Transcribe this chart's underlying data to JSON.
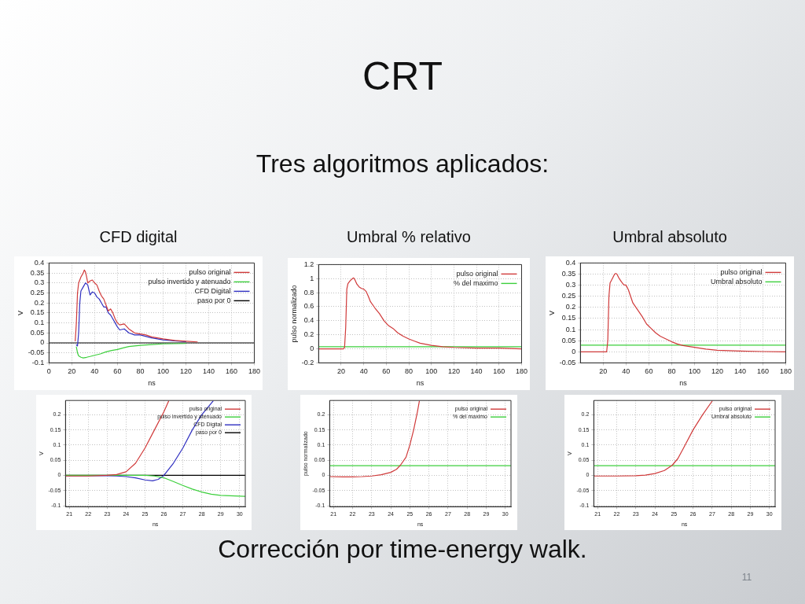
{
  "chart_data": [
    {
      "type": "other",
      "title": "CRT",
      "subtitle": "Tres algoritmos aplicados:",
      "annotations": [
        "Corrección por time-energy walk.",
        "11"
      ]
    },
    {
      "type": "line",
      "title": "CFD digital",
      "xlabel": "ns",
      "ylabel": "V",
      "xlim": [
        0,
        180
      ],
      "xticks": [
        0,
        20,
        40,
        60,
        80,
        100,
        120,
        140,
        160,
        180
      ],
      "ylim": [
        -0.1,
        0.4
      ],
      "yticks": [
        -0.1,
        -0.05,
        0,
        0.05,
        0.1,
        0.15,
        0.2,
        0.25,
        0.3,
        0.35,
        0.4
      ],
      "grid": true,
      "legend": "top right",
      "marker": "none",
      "series": [
        {
          "name": "pulso original",
          "color": "#d03a3a",
          "x": [
            23,
            24,
            25,
            26,
            28,
            30,
            31,
            32,
            33,
            34,
            36,
            38,
            40,
            42,
            44,
            46,
            48,
            50,
            52,
            54,
            56,
            58,
            60,
            62,
            66,
            70,
            75,
            80,
            85,
            90,
            100,
            110,
            120,
            130
          ],
          "values": [
            0.01,
            0.1,
            0.25,
            0.3,
            0.33,
            0.35,
            0.365,
            0.355,
            0.33,
            0.3,
            0.31,
            0.315,
            0.3,
            0.29,
            0.26,
            0.235,
            0.22,
            0.19,
            0.16,
            0.17,
            0.15,
            0.12,
            0.1,
            0.09,
            0.095,
            0.07,
            0.05,
            0.045,
            0.04,
            0.03,
            0.02,
            0.012,
            0.008,
            0.005
          ]
        },
        {
          "name": "pulso invertido y atenuado",
          "color": "#3ccf3c",
          "x": [
            24,
            25,
            26,
            28,
            30,
            33,
            36,
            40,
            45,
            50,
            55,
            60,
            65,
            70,
            80,
            90,
            100,
            120
          ],
          "values": [
            -0.02,
            -0.05,
            -0.065,
            -0.072,
            -0.075,
            -0.072,
            -0.068,
            -0.062,
            -0.055,
            -0.045,
            -0.038,
            -0.033,
            -0.025,
            -0.018,
            -0.012,
            -0.008,
            -0.005,
            -0.003
          ]
        },
        {
          "name": "CFD Digital",
          "color": "#2f2fc0",
          "x": [
            24,
            25,
            26,
            27,
            28,
            30,
            32,
            34,
            36,
            38,
            40,
            42,
            44,
            46,
            48,
            50,
            52,
            54,
            56,
            58,
            60,
            62,
            66,
            70,
            75,
            80,
            90,
            100,
            110,
            120
          ],
          "values": [
            -0.01,
            -0.015,
            0.05,
            0.2,
            0.26,
            0.28,
            0.3,
            0.29,
            0.24,
            0.255,
            0.25,
            0.23,
            0.22,
            0.2,
            0.18,
            0.18,
            0.15,
            0.14,
            0.12,
            0.1,
            0.08,
            0.065,
            0.07,
            0.05,
            0.04,
            0.04,
            0.025,
            0.015,
            0.01,
            0.006
          ]
        },
        {
          "name": "paso por 0",
          "color": "#000000",
          "x": [
            0,
            180
          ],
          "values": [
            0,
            0
          ]
        }
      ]
    },
    {
      "type": "line",
      "title": "Umbral % relativo",
      "xlabel": "ns",
      "ylabel": "pulso normalizado",
      "xlim": [
        0,
        180
      ],
      "xticks": [
        20,
        40,
        60,
        80,
        100,
        120,
        140,
        160,
        180
      ],
      "ylim": [
        -0.2,
        1.2
      ],
      "yticks": [
        -0.2,
        0,
        0.2,
        0.4,
        0.6,
        0.8,
        1,
        1.2
      ],
      "grid": true,
      "legend": "top right",
      "marker": "none",
      "series": [
        {
          "name": "pulso original",
          "color": "#d03a3a",
          "x": [
            0,
            22,
            23,
            24,
            25,
            26,
            28,
            30,
            31,
            32,
            34,
            36,
            38,
            40,
            42,
            44,
            46,
            50,
            54,
            58,
            62,
            66,
            70,
            75,
            80,
            85,
            90,
            100,
            110,
            120,
            140,
            160,
            180
          ],
          "values": [
            0,
            0,
            0.02,
            0.3,
            0.85,
            0.93,
            0.97,
            1,
            1.01,
            0.99,
            0.92,
            0.88,
            0.86,
            0.85,
            0.82,
            0.75,
            0.67,
            0.58,
            0.5,
            0.4,
            0.33,
            0.29,
            0.23,
            0.18,
            0.14,
            0.11,
            0.08,
            0.05,
            0.03,
            0.02,
            0.01,
            0.01,
            0
          ]
        },
        {
          "name": "% del maximo",
          "color": "#3ccf3c",
          "x": [
            0,
            180
          ],
          "values": [
            0.03,
            0.03
          ]
        }
      ]
    },
    {
      "type": "line",
      "title": "Umbral absoluto",
      "xlabel": "ns",
      "ylabel": "V",
      "xlim": [
        0,
        180
      ],
      "xticks": [
        20,
        40,
        60,
        80,
        100,
        120,
        140,
        160,
        180
      ],
      "ylim": [
        -0.05,
        0.4
      ],
      "yticks": [
        -0.05,
        0,
        0.05,
        0.1,
        0.15,
        0.2,
        0.25,
        0.3,
        0.35,
        0.4
      ],
      "grid": true,
      "legend": "top right",
      "marker": "none",
      "series": [
        {
          "name": "pulso original",
          "color": "#d03a3a",
          "x": [
            0,
            22,
            23,
            24,
            25,
            26,
            28,
            30,
            31,
            32,
            34,
            36,
            38,
            40,
            42,
            44,
            46,
            50,
            54,
            58,
            62,
            66,
            70,
            75,
            80,
            85,
            90,
            100,
            110,
            120,
            140,
            160,
            180
          ],
          "values": [
            0,
            0,
            0,
            0.05,
            0.25,
            0.31,
            0.33,
            0.35,
            0.353,
            0.35,
            0.33,
            0.315,
            0.302,
            0.3,
            0.28,
            0.25,
            0.22,
            0.19,
            0.16,
            0.125,
            0.105,
            0.085,
            0.07,
            0.058,
            0.045,
            0.035,
            0.028,
            0.02,
            0.012,
            0.007,
            0.003,
            0.001,
            0
          ]
        },
        {
          "name": "Umbral absoluto",
          "color": "#3ccf3c",
          "x": [
            0,
            180
          ],
          "values": [
            0.03,
            0.03
          ]
        }
      ]
    },
    {
      "type": "line",
      "xlabel": "ns",
      "ylabel": "V",
      "xlim": [
        20.8,
        30.3
      ],
      "xticks": [
        21,
        22,
        23,
        24,
        25,
        26,
        27,
        28,
        29,
        30
      ],
      "ylim": [
        -0.103,
        0.247
      ],
      "yticks": [
        -0.1,
        -0.05,
        0,
        0.05,
        0.1,
        0.15,
        0.2
      ],
      "grid": true,
      "legend": "top right",
      "marker": "none",
      "series": [
        {
          "name": "pulso original",
          "color": "#d03a3a",
          "x": [
            20.8,
            22,
            23,
            23.5,
            24,
            24.5,
            25,
            25.5,
            26,
            26.25
          ],
          "values": [
            -0.002,
            -0.002,
            0,
            0.003,
            0.012,
            0.04,
            0.09,
            0.15,
            0.21,
            0.245
          ]
        },
        {
          "name": "pulso invertido y atenuado",
          "color": "#3ccf3c",
          "x": [
            20.8,
            25,
            25.5,
            26,
            26.5,
            27,
            27.5,
            28,
            28.5,
            29,
            29.5,
            30.3
          ],
          "values": [
            0,
            0,
            -0.002,
            -0.008,
            -0.02,
            -0.033,
            -0.045,
            -0.055,
            -0.062,
            -0.066,
            -0.067,
            -0.069
          ]
        },
        {
          "name": "CFD Digital",
          "color": "#2f2fc0",
          "x": [
            20.8,
            23,
            23.5,
            24,
            24.5,
            25,
            25.4,
            25.7,
            26,
            26.5,
            27,
            27.5,
            28,
            28.6
          ],
          "values": [
            -0.001,
            -0.001,
            -0.002,
            -0.004,
            -0.008,
            -0.015,
            -0.018,
            -0.013,
            0,
            0.04,
            0.09,
            0.15,
            0.2,
            0.245
          ]
        },
        {
          "name": "paso por 0",
          "color": "#000000",
          "x": [
            20.8,
            30.3
          ],
          "values": [
            0,
            0
          ]
        }
      ]
    },
    {
      "type": "line",
      "xlabel": "ns",
      "ylabel": "pulso normalizado",
      "xlim": [
        20.8,
        30.3
      ],
      "xticks": [
        21,
        22,
        23,
        24,
        25,
        26,
        27,
        28,
        29,
        30
      ],
      "ylim": [
        -0.103,
        0.247
      ],
      "yticks": [
        -0.1,
        -0.05,
        0,
        0.05,
        0.1,
        0.15,
        0.2
      ],
      "grid": true,
      "legend": "top right",
      "marker": "none",
      "series": [
        {
          "name": "pulso original",
          "color": "#d03a3a",
          "x": [
            20.8,
            21.5,
            22,
            22.5,
            23,
            23.5,
            24,
            24.3,
            24.5,
            24.8,
            25,
            25.2,
            25.4,
            25.5
          ],
          "values": [
            -0.004,
            -0.005,
            -0.005,
            -0.004,
            -0.002,
            0.002,
            0.01,
            0.02,
            0.033,
            0.06,
            0.1,
            0.15,
            0.21,
            0.245
          ]
        },
        {
          "name": "% del maximo",
          "color": "#3ccf3c",
          "x": [
            20.8,
            30.3
          ],
          "values": [
            0.032,
            0.032
          ]
        }
      ]
    },
    {
      "type": "line",
      "xlabel": "ns",
      "ylabel": "V",
      "xlim": [
        20.8,
        30.3
      ],
      "xticks": [
        21,
        22,
        23,
        24,
        25,
        26,
        27,
        28,
        29,
        30
      ],
      "ylim": [
        -0.103,
        0.247
      ],
      "yticks": [
        -0.1,
        -0.05,
        0,
        0.05,
        0.1,
        0.15,
        0.2
      ],
      "grid": true,
      "legend": "top right",
      "marker": "none",
      "series": [
        {
          "name": "pulso original",
          "color": "#d03a3a",
          "x": [
            20.8,
            22,
            23,
            23.5,
            24,
            24.5,
            24.9,
            25.2,
            25.5,
            26,
            26.5,
            27
          ],
          "values": [
            -0.002,
            -0.002,
            -0.001,
            0.001,
            0.006,
            0.016,
            0.033,
            0.055,
            0.09,
            0.15,
            0.2,
            0.245
          ]
        },
        {
          "name": "Umbral absoluto",
          "color": "#3ccf3c",
          "x": [
            20.8,
            30.3
          ],
          "values": [
            0.032,
            0.032
          ]
        }
      ]
    }
  ]
}
